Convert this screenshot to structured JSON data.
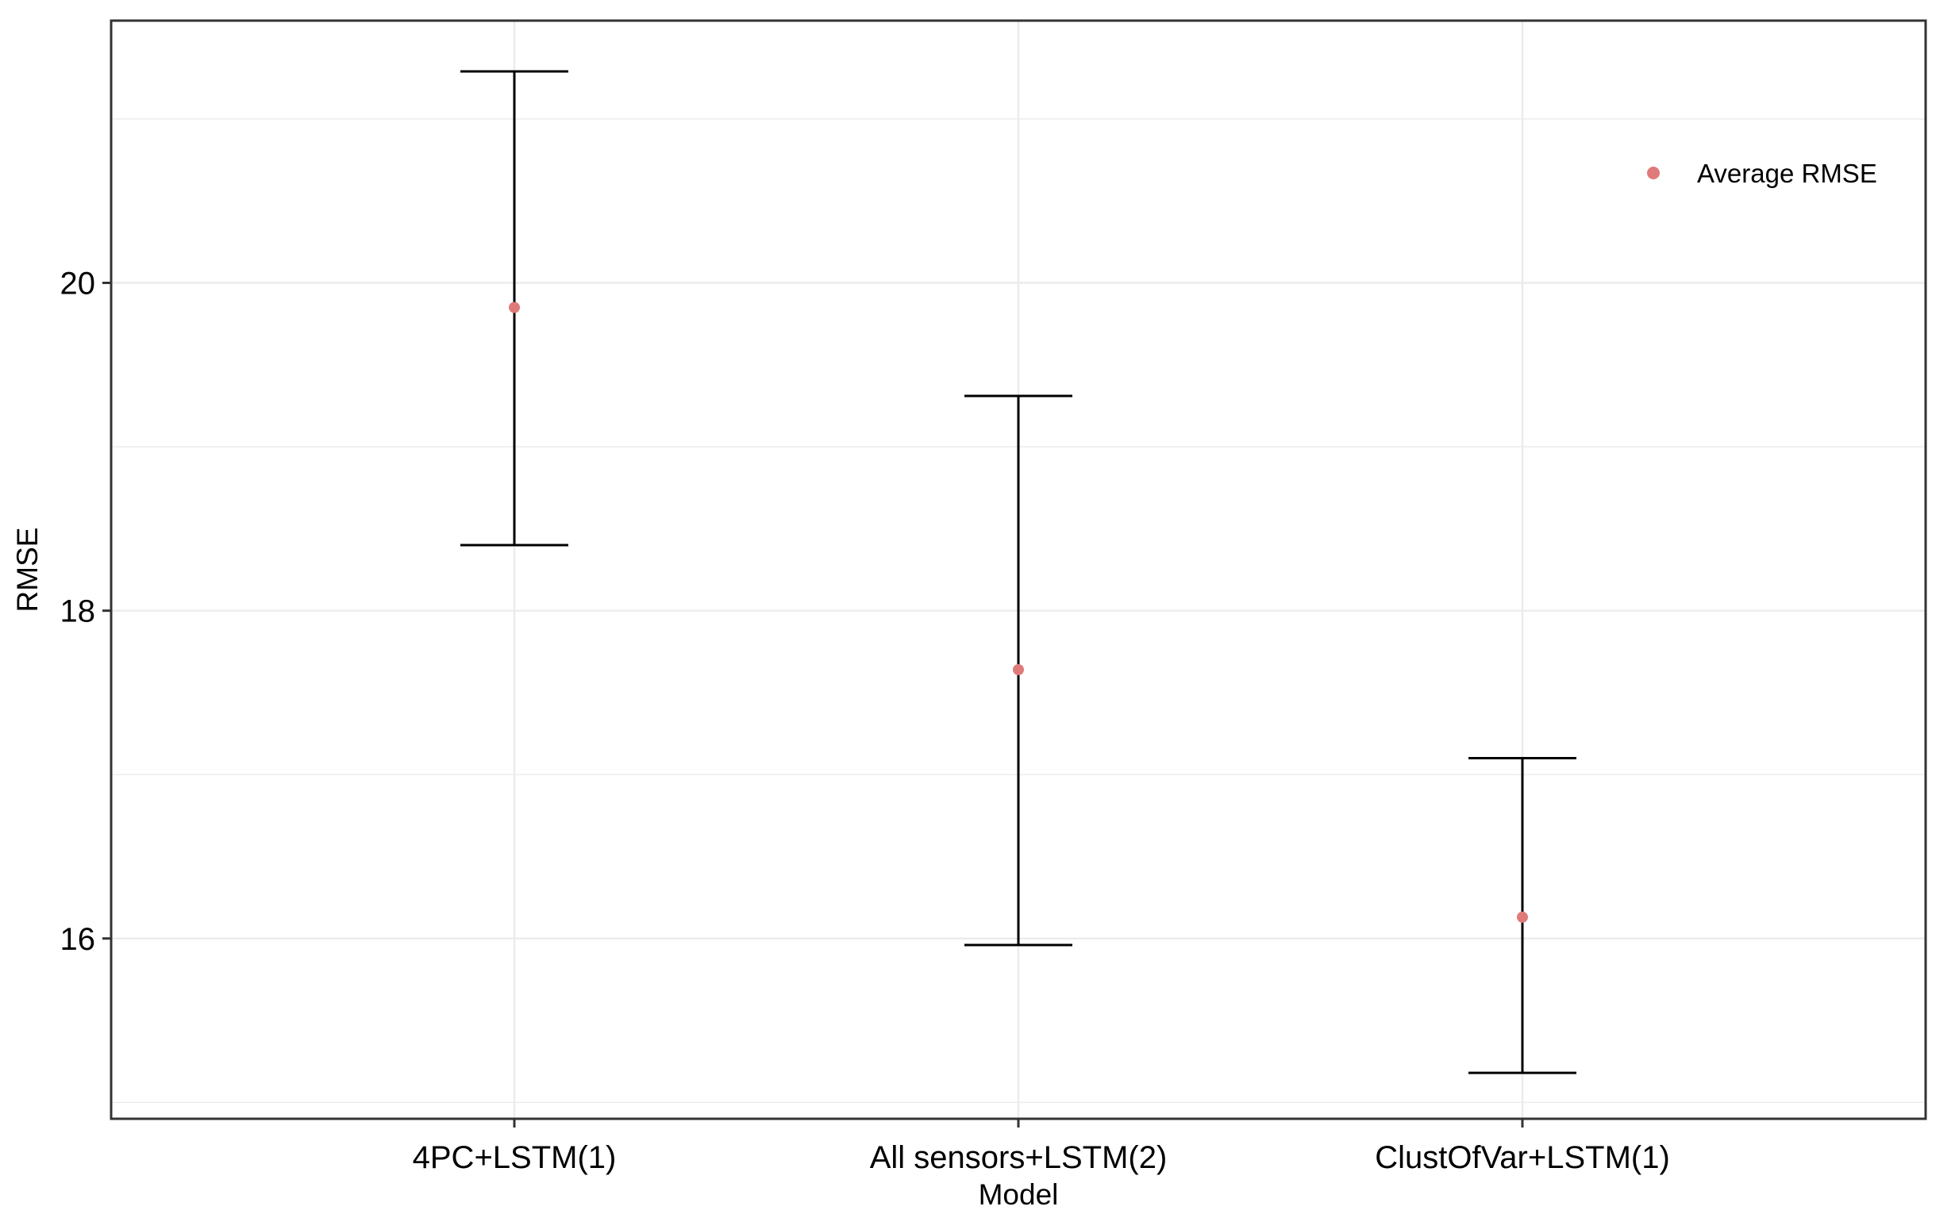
{
  "chart_data": {
    "type": "scatter",
    "title": "",
    "xlabel": "Model",
    "ylabel": "RMSE",
    "categories": [
      "4PC+LSTM(1)",
      "All sensors+LSTM(2)",
      "ClustOfVar+LSTM(1)"
    ],
    "series": [
      {
        "name": "Average RMSE",
        "values": [
          19.85,
          17.64,
          16.13
        ],
        "error_lower": [
          18.4,
          15.96,
          15.18
        ],
        "error_upper": [
          21.29,
          19.31,
          17.1
        ]
      }
    ],
    "yticks": [
      16,
      18,
      20
    ],
    "ylim": [
      14.9,
      21.6
    ],
    "grid": true,
    "legend_position": "top-right",
    "point_color": "#e07a7a",
    "errorbar_color": "#000000",
    "grid_color": "#ebebeb"
  }
}
